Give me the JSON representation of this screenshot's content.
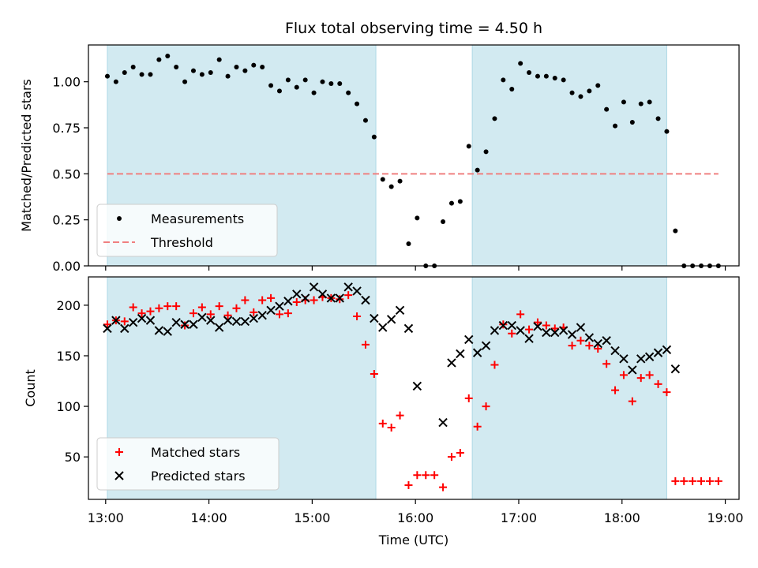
{
  "chart_data": [
    {
      "type": "scatter",
      "title": "Flux total observing time = 4.50 h",
      "ylabel": "Matched/Predicted stars",
      "xlabel": "",
      "xlim": [
        "12:50",
        "19:08"
      ],
      "ylim": [
        0,
        1.2
      ],
      "yticks": [
        "0.00",
        "0.25",
        "0.50",
        "0.75",
        "1.00"
      ],
      "legend_position": "lower-left",
      "shaded_intervals": [
        [
          "13:01",
          "15:37"
        ],
        [
          "16:33",
          "18:26"
        ]
      ],
      "shade_color": "#add8e6",
      "series": [
        {
          "name": "Measurements",
          "marker": "dot",
          "color": "#000000",
          "points": [
            [
              "13:01",
              1.03
            ],
            [
              "13:06",
              1.0
            ],
            [
              "13:11",
              1.05
            ],
            [
              "13:16",
              1.08
            ],
            [
              "13:21",
              1.04
            ],
            [
              "13:26",
              1.04
            ],
            [
              "13:31",
              1.12
            ],
            [
              "13:36",
              1.14
            ],
            [
              "13:41",
              1.08
            ],
            [
              "13:46",
              1.0
            ],
            [
              "13:51",
              1.06
            ],
            [
              "13:56",
              1.04
            ],
            [
              "14:01",
              1.05
            ],
            [
              "14:06",
              1.12
            ],
            [
              "14:11",
              1.03
            ],
            [
              "14:16",
              1.08
            ],
            [
              "14:21",
              1.06
            ],
            [
              "14:26",
              1.09
            ],
            [
              "14:31",
              1.08
            ],
            [
              "14:36",
              0.98
            ],
            [
              "14:41",
              0.95
            ],
            [
              "14:46",
              1.01
            ],
            [
              "14:51",
              0.97
            ],
            [
              "14:56",
              1.01
            ],
            [
              "15:01",
              0.94
            ],
            [
              "15:06",
              1.0
            ],
            [
              "15:11",
              0.99
            ],
            [
              "15:16",
              0.99
            ],
            [
              "15:21",
              0.94
            ],
            [
              "15:26",
              0.88
            ],
            [
              "15:31",
              0.79
            ],
            [
              "15:36",
              0.7
            ],
            [
              "15:41",
              0.47
            ],
            [
              "15:46",
              0.43
            ],
            [
              "15:51",
              0.46
            ],
            [
              "15:56",
              0.12
            ],
            [
              "16:01",
              0.26
            ],
            [
              "16:06",
              0.0
            ],
            [
              "16:11",
              0.0
            ],
            [
              "16:16",
              0.24
            ],
            [
              "16:21",
              0.34
            ],
            [
              "16:26",
              0.35
            ],
            [
              "16:31",
              0.65
            ],
            [
              "16:36",
              0.52
            ],
            [
              "16:41",
              0.62
            ],
            [
              "16:46",
              0.8
            ],
            [
              "16:51",
              1.01
            ],
            [
              "16:56",
              0.96
            ],
            [
              "17:01",
              1.1
            ],
            [
              "17:06",
              1.05
            ],
            [
              "17:11",
              1.03
            ],
            [
              "17:16",
              1.03
            ],
            [
              "17:21",
              1.02
            ],
            [
              "17:26",
              1.01
            ],
            [
              "17:31",
              0.94
            ],
            [
              "17:36",
              0.92
            ],
            [
              "17:41",
              0.95
            ],
            [
              "17:46",
              0.98
            ],
            [
              "17:51",
              0.85
            ],
            [
              "17:56",
              0.76
            ],
            [
              "18:01",
              0.89
            ],
            [
              "18:06",
              0.78
            ],
            [
              "18:11",
              0.88
            ],
            [
              "18:16",
              0.89
            ],
            [
              "18:21",
              0.8
            ],
            [
              "18:26",
              0.73
            ],
            [
              "18:31",
              0.19
            ],
            [
              "18:36",
              0.0
            ],
            [
              "18:41",
              0.0
            ],
            [
              "18:46",
              0.0
            ],
            [
              "18:51",
              0.0
            ],
            [
              "18:56",
              0.0
            ]
          ]
        },
        {
          "name": "Threshold",
          "marker": "dashed-line",
          "color": "#f08080",
          "points": [
            [
              "13:01",
              0.5
            ],
            [
              "18:56",
              0.5
            ]
          ]
        }
      ]
    },
    {
      "type": "scatter",
      "title": "",
      "ylabel": "Count",
      "xlabel": "Time (UTC)",
      "xlim": [
        "12:50",
        "19:08"
      ],
      "ylim": [
        8,
        228
      ],
      "yticks": [
        "50",
        "100",
        "150",
        "200"
      ],
      "xticks": [
        "13:00",
        "14:00",
        "15:00",
        "16:00",
        "17:00",
        "18:00",
        "19:00"
      ],
      "legend_position": "lower-left",
      "shaded_intervals": [
        [
          "13:01",
          "15:37"
        ],
        [
          "16:33",
          "18:26"
        ]
      ],
      "shade_color": "#add8e6",
      "series": [
        {
          "name": "Matched stars",
          "marker": "plus",
          "color": "#ff0000",
          "points": [
            [
              "13:01",
              181
            ],
            [
              "13:06",
              185
            ],
            [
              "13:11",
              184
            ],
            [
              "13:16",
              198
            ],
            [
              "13:21",
              192
            ],
            [
              "13:26",
              194
            ],
            [
              "13:31",
              197
            ],
            [
              "13:36",
              199
            ],
            [
              "13:41",
              199
            ],
            [
              "13:46",
              180
            ],
            [
              "13:51",
              192
            ],
            [
              "13:56",
              198
            ],
            [
              "14:01",
              191
            ],
            [
              "14:06",
              199
            ],
            [
              "14:11",
              190
            ],
            [
              "14:16",
              197
            ],
            [
              "14:21",
              205
            ],
            [
              "14:26",
              193
            ],
            [
              "14:31",
              205
            ],
            [
              "14:36",
              207
            ],
            [
              "14:41",
              191
            ],
            [
              "14:46",
              192
            ],
            [
              "14:51",
              203
            ],
            [
              "14:56",
              205
            ],
            [
              "15:01",
              205
            ],
            [
              "15:06",
              208
            ],
            [
              "15:11",
              207
            ],
            [
              "15:16",
              206
            ],
            [
              "15:21",
              210
            ],
            [
              "15:26",
              189
            ],
            [
              "15:31",
              161
            ],
            [
              "15:36",
              132
            ],
            [
              "15:41",
              83
            ],
            [
              "15:46",
              79
            ],
            [
              "15:51",
              91
            ],
            [
              "15:56",
              22
            ],
            [
              "16:01",
              32
            ],
            [
              "16:06",
              32
            ],
            [
              "16:11",
              32
            ],
            [
              "16:16",
              20
            ],
            [
              "16:21",
              50
            ],
            [
              "16:26",
              54
            ],
            [
              "16:31",
              108
            ],
            [
              "16:36",
              80
            ],
            [
              "16:41",
              100
            ],
            [
              "16:46",
              141
            ],
            [
              "16:51",
              181
            ],
            [
              "16:56",
              172
            ],
            [
              "17:01",
              191
            ],
            [
              "17:06",
              176
            ],
            [
              "17:11",
              183
            ],
            [
              "17:16",
              180
            ],
            [
              "17:21",
              177
            ],
            [
              "17:26",
              178
            ],
            [
              "17:31",
              160
            ],
            [
              "17:36",
              165
            ],
            [
              "17:41",
              160
            ],
            [
              "17:46",
              157
            ],
            [
              "17:51",
              142
            ],
            [
              "17:56",
              116
            ],
            [
              "18:01",
              131
            ],
            [
              "18:06",
              105
            ],
            [
              "18:11",
              128
            ],
            [
              "18:16",
              131
            ],
            [
              "18:21",
              122
            ],
            [
              "18:26",
              114
            ],
            [
              "18:31",
              26
            ],
            [
              "18:36",
              26
            ],
            [
              "18:41",
              26
            ],
            [
              "18:46",
              26
            ],
            [
              "18:51",
              26
            ],
            [
              "18:56",
              26
            ]
          ]
        },
        {
          "name": "Predicted stars",
          "marker": "x",
          "color": "#000000",
          "points": [
            [
              "13:01",
              177
            ],
            [
              "13:06",
              185
            ],
            [
              "13:11",
              177
            ],
            [
              "13:16",
              183
            ],
            [
              "13:21",
              187
            ],
            [
              "13:26",
              185
            ],
            [
              "13:31",
              175
            ],
            [
              "13:36",
              174
            ],
            [
              "13:41",
              183
            ],
            [
              "13:46",
              181
            ],
            [
              "13:51",
              181
            ],
            [
              "13:56",
              188
            ],
            [
              "14:01",
              185
            ],
            [
              "14:06",
              178
            ],
            [
              "14:11",
              185
            ],
            [
              "14:16",
              184
            ],
            [
              "14:21",
              184
            ],
            [
              "14:26",
              187
            ],
            [
              "14:31",
              190
            ],
            [
              "14:36",
              195
            ],
            [
              "14:41",
              199
            ],
            [
              "14:46",
              204
            ],
            [
              "14:51",
              211
            ],
            [
              "14:56",
              207
            ],
            [
              "15:01",
              218
            ],
            [
              "15:06",
              211
            ],
            [
              "15:11",
              207
            ],
            [
              "15:16",
              207
            ],
            [
              "15:21",
              218
            ],
            [
              "15:26",
              214
            ],
            [
              "15:31",
              205
            ],
            [
              "15:36",
              187
            ],
            [
              "15:41",
              178
            ],
            [
              "15:46",
              186
            ],
            [
              "15:51",
              195
            ],
            [
              "15:56",
              177
            ],
            [
              "16:01",
              120
            ],
            [
              "16:16",
              84
            ],
            [
              "16:21",
              143
            ],
            [
              "16:26",
              152
            ],
            [
              "16:31",
              166
            ],
            [
              "16:36",
              153
            ],
            [
              "16:41",
              160
            ],
            [
              "16:46",
              175
            ],
            [
              "16:51",
              180
            ],
            [
              "16:56",
              180
            ],
            [
              "17:01",
              175
            ],
            [
              "17:06",
              167
            ],
            [
              "17:11",
              179
            ],
            [
              "17:16",
              173
            ],
            [
              "17:21",
              173
            ],
            [
              "17:26",
              175
            ],
            [
              "17:31",
              171
            ],
            [
              "17:36",
              178
            ],
            [
              "17:41",
              168
            ],
            [
              "17:46",
              162
            ],
            [
              "17:51",
              165
            ],
            [
              "17:56",
              155
            ],
            [
              "18:01",
              147
            ],
            [
              "18:06",
              136
            ],
            [
              "18:11",
              147
            ],
            [
              "18:16",
              149
            ],
            [
              "18:21",
              153
            ],
            [
              "18:26",
              156
            ],
            [
              "18:31",
              137
            ]
          ]
        }
      ]
    }
  ]
}
